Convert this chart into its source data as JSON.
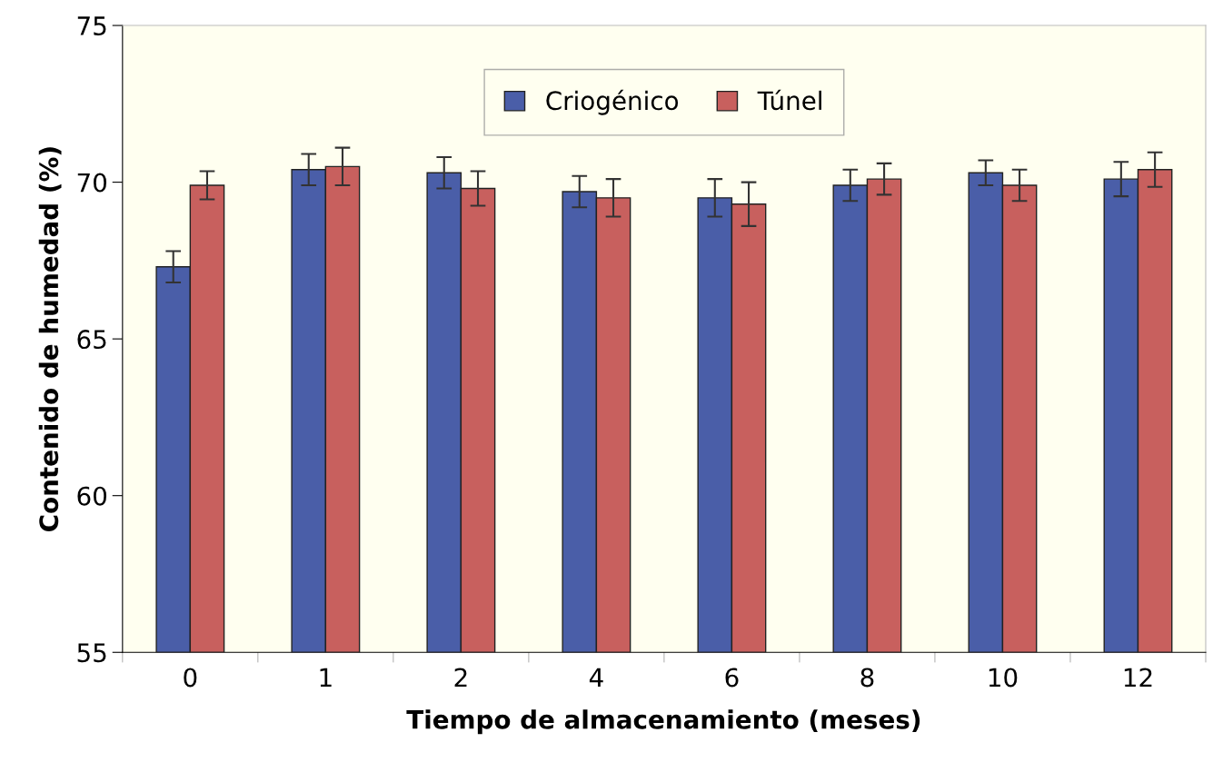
{
  "chart_data": {
    "type": "bar",
    "xlabel": "Tiempo de almacenamiento (meses)",
    "ylabel": "Contenido de humedad (%)",
    "categories": [
      "0",
      "1",
      "2",
      "4",
      "6",
      "8",
      "10",
      "12"
    ],
    "series": [
      {
        "name": "Criogénico",
        "color": "#4a5ea8",
        "values": [
          67.3,
          70.4,
          70.3,
          69.7,
          69.5,
          69.9,
          70.3,
          70.1
        ],
        "errors": [
          0.5,
          0.5,
          0.5,
          0.5,
          0.6,
          0.5,
          0.4,
          0.55
        ]
      },
      {
        "name": "Túnel",
        "color": "#c8605e",
        "values": [
          69.9,
          70.5,
          69.8,
          69.5,
          69.3,
          70.1,
          69.9,
          70.4
        ],
        "errors": [
          0.45,
          0.6,
          0.55,
          0.6,
          0.7,
          0.5,
          0.5,
          0.55
        ]
      }
    ],
    "ylim": [
      55,
      75
    ],
    "yticks": [
      55,
      60,
      65,
      70,
      75
    ],
    "grid": false,
    "legend": "top"
  }
}
